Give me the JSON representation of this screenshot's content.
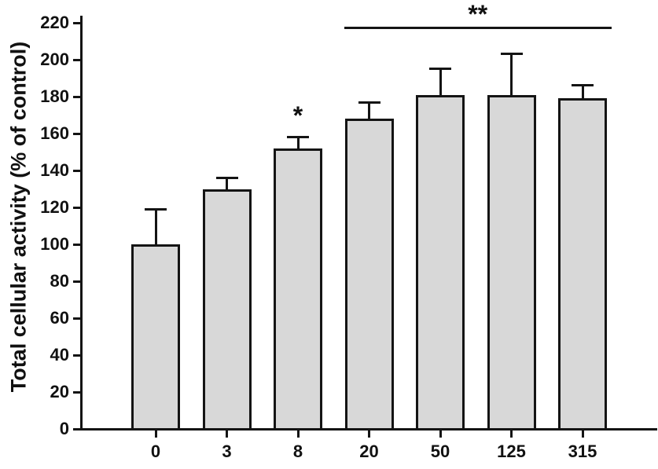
{
  "figure": {
    "background": "#ffffff"
  },
  "chart_data": {
    "type": "bar",
    "title": "",
    "xlabel": "",
    "ylabel": "Total cellular activity (% of control)",
    "categories": [
      "0",
      "3",
      "8",
      "20",
      "50",
      "125",
      "315"
    ],
    "values": [
      100,
      130,
      152,
      168,
      181,
      181,
      179
    ],
    "errors_upper": [
      19,
      6,
      6,
      9,
      14,
      22,
      7
    ],
    "ylim": [
      0,
      220
    ],
    "ytick_step": 20,
    "yticks": [
      0,
      20,
      40,
      60,
      80,
      100,
      120,
      140,
      160,
      180,
      200,
      220
    ],
    "grid": "off",
    "legend": "none",
    "bar_fill": "#d8d8d8",
    "bar_border": "#141414",
    "axis_color": "#141414",
    "annotations": [
      {
        "type": "asterisk",
        "text": "*",
        "category": "8"
      },
      {
        "type": "significance-bracket",
        "text": "**",
        "from_category": "20",
        "to_category": "315"
      }
    ]
  }
}
